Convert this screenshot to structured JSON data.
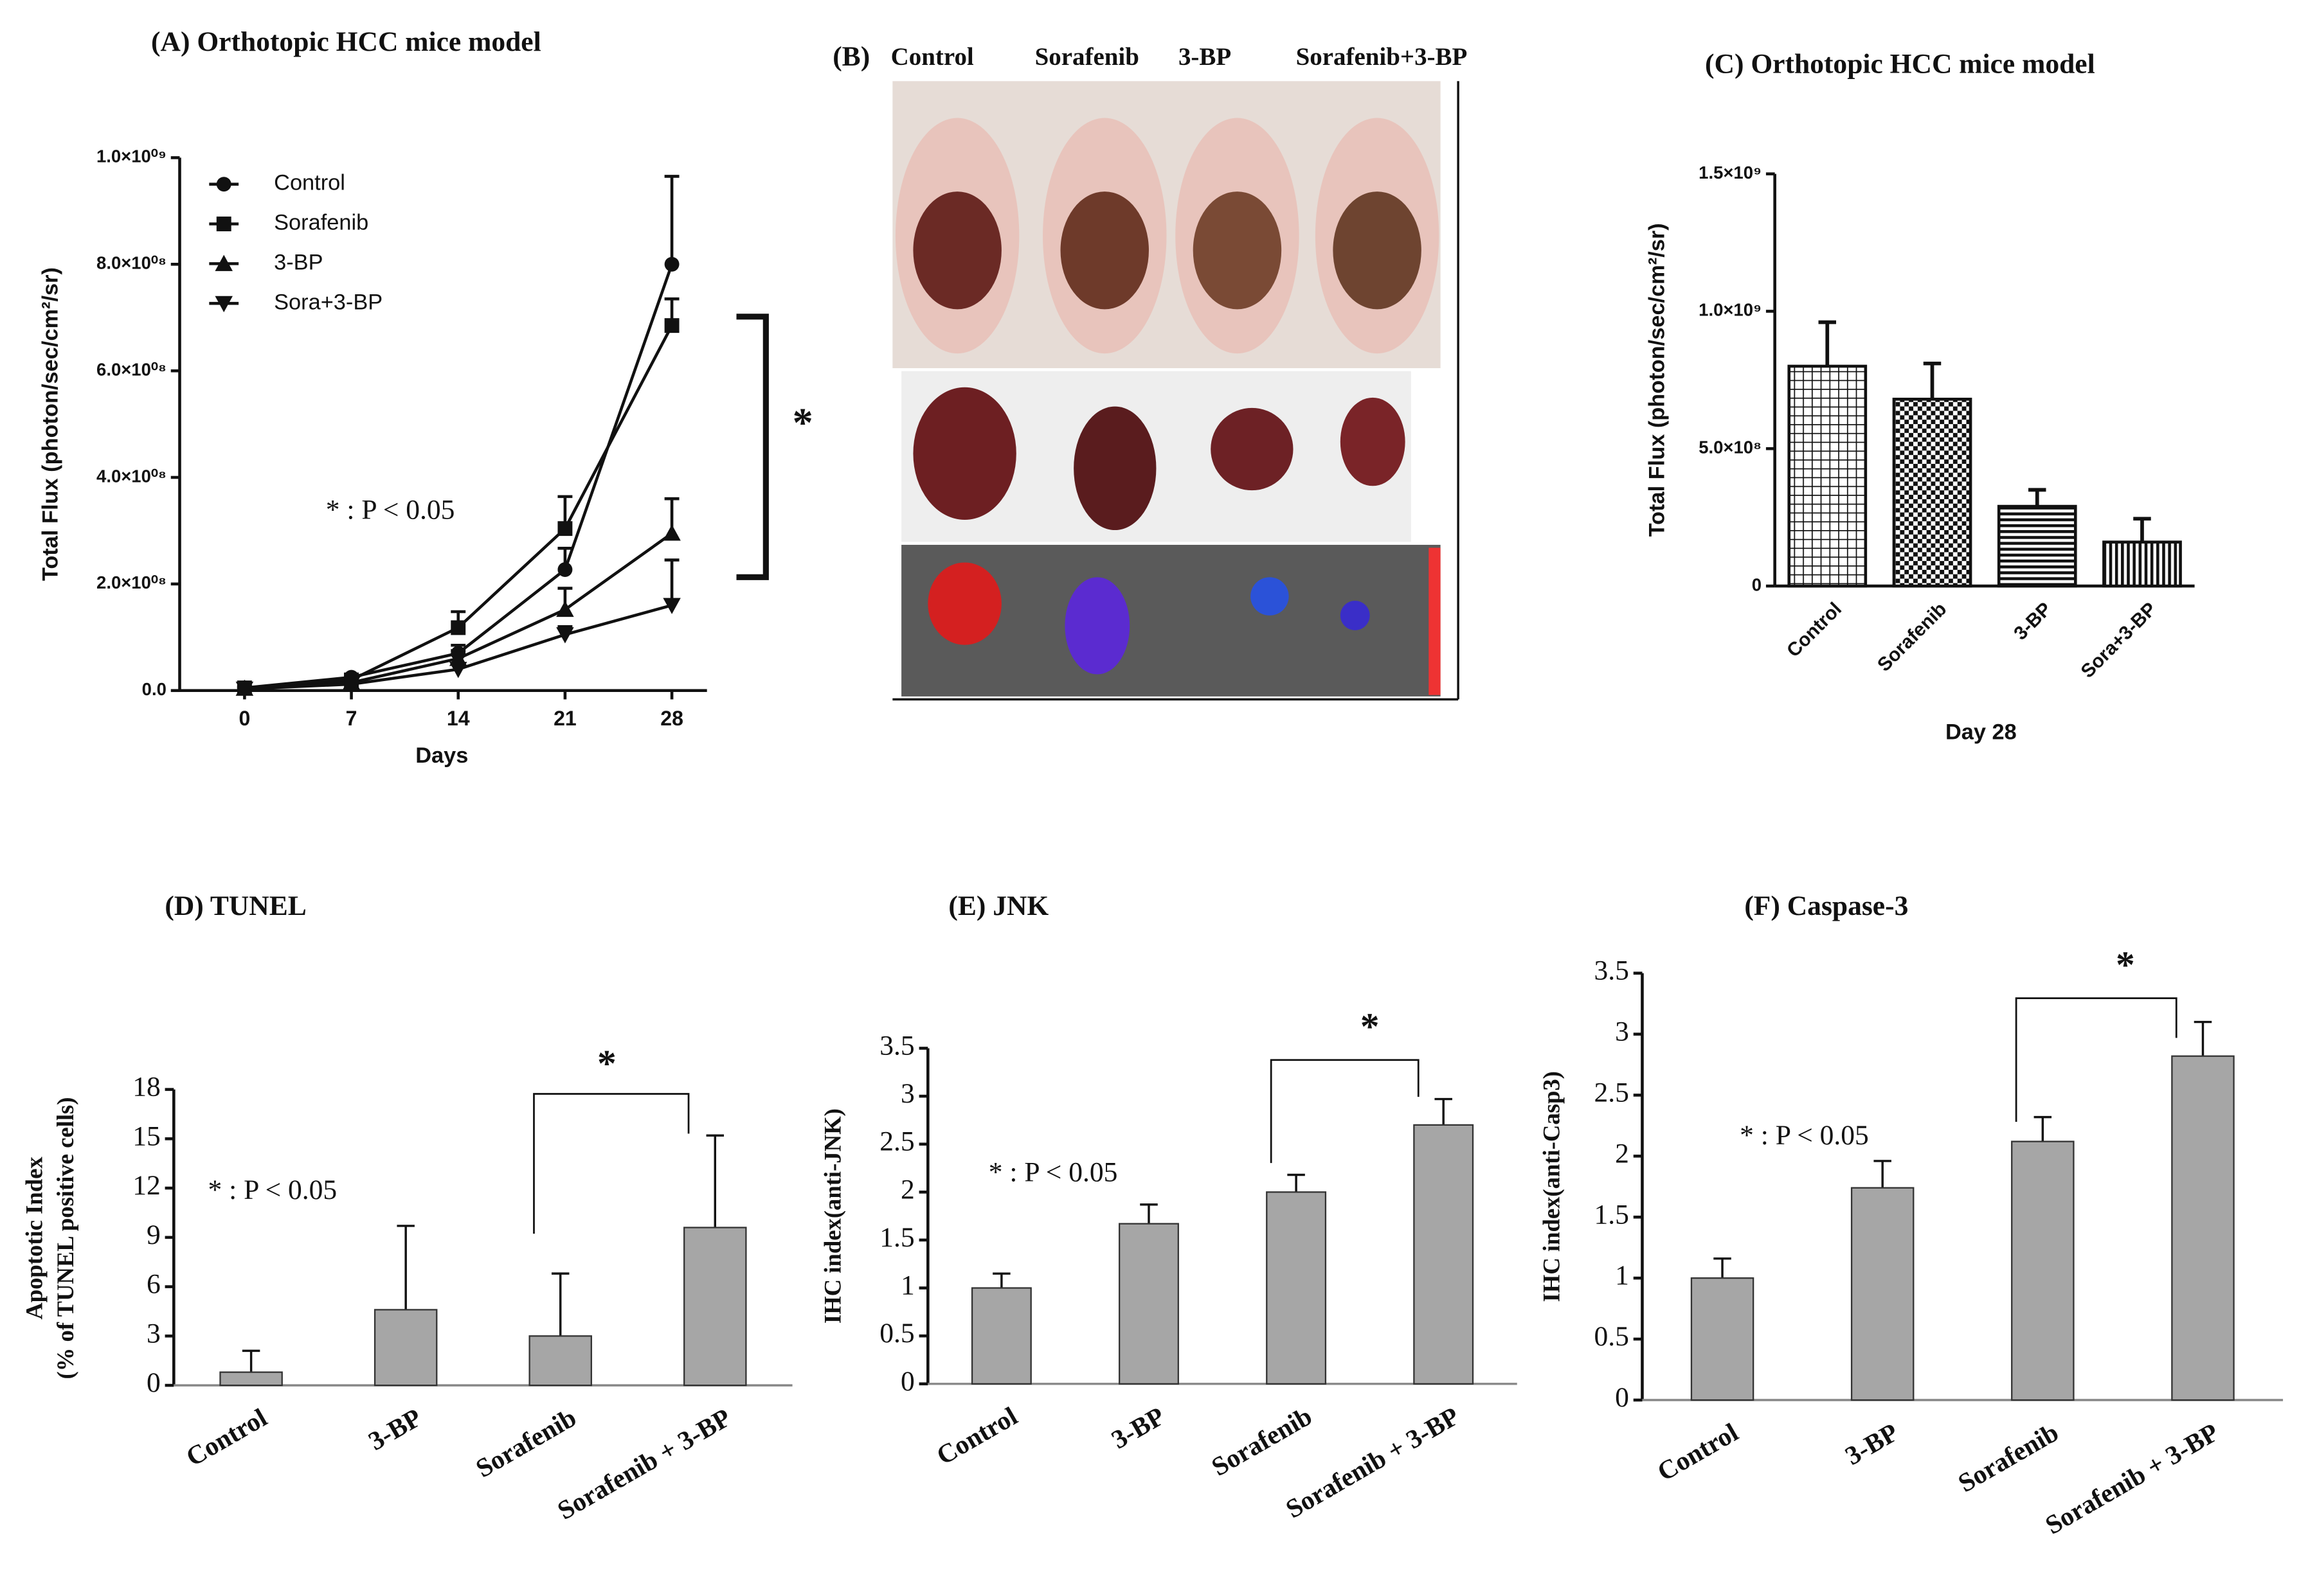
{
  "chart_data": [
    {
      "type": "line",
      "title": "(A) Orthotopic HCC mice model",
      "xlabel": "Days",
      "ylabel": "Total Flux (photon/sec/cm²/sr)",
      "x": [
        0,
        7,
        14,
        21,
        28
      ],
      "xlim": [
        -4.25,
        30.3
      ],
      "xticks": [
        0,
        7,
        14,
        21,
        28
      ],
      "ylim": [
        0,
        1000000000
      ],
      "yticks": [
        {
          "value": 0,
          "label": "0.0"
        },
        {
          "value": 200000000,
          "label": "2.0×10⁰⁸"
        },
        {
          "value": 400000000,
          "label": "4.0×10⁰⁸"
        },
        {
          "value": 600000000,
          "label": "6.0×10⁰⁸"
        },
        {
          "value": 800000000,
          "label": "8.0×10⁰⁸"
        },
        {
          "value": 1000000000,
          "label": "1.0×10⁰⁹"
        }
      ],
      "series": [
        {
          "name": "Control",
          "marker": "circle",
          "color": "#111111",
          "values": [
            5000000,
            25000000,
            70000000,
            227000000,
            800000000
          ],
          "errors": [
            2000000,
            5000000,
            15000000,
            40000000,
            165000000
          ]
        },
        {
          "name": "Sorafenib",
          "marker": "square",
          "color": "#111111",
          "values": [
            5000000,
            20000000,
            118000000,
            304000000,
            685000000
          ],
          "errors": [
            2000000,
            5000000,
            30000000,
            60000000,
            50000000
          ]
        },
        {
          "name": "3-BP",
          "marker": "triangle",
          "color": "#111111",
          "values": [
            4000000,
            15000000,
            60000000,
            152000000,
            295000000
          ],
          "errors": [
            2000000,
            4000000,
            15000000,
            40000000,
            65000000
          ]
        },
        {
          "name": "Sora+3-BP",
          "marker": "triangle-down",
          "color": "#111111",
          "values": [
            3000000,
            12000000,
            40000000,
            105000000,
            160000000
          ],
          "errors": [
            2000000,
            3000000,
            10000000,
            15000000,
            85000000
          ]
        }
      ],
      "annotations": [
        "* : P < 0.05",
        "*"
      ]
    },
    {
      "type": "image",
      "title": "(B)",
      "categories": [
        "Control",
        "Sorafenib",
        "3-BP",
        "Sorafenib+3-BP"
      ]
    },
    {
      "type": "bar",
      "title": "(C) Orthotopic HCC mice model",
      "xlabel": "Day 28",
      "ylabel": "Total Flux (photon/sec/cm²/sr)",
      "categories": [
        "Control",
        "Sorafenib",
        "3-BP",
        "Sora+3-BP"
      ],
      "values": [
        800000000,
        680000000,
        290000000,
        160000000
      ],
      "errors": [
        160000000,
        130000000,
        60000000,
        85000000
      ],
      "patterns": [
        "grid",
        "checker",
        "hlines",
        "vlines"
      ],
      "color": "#111111",
      "ylim": [
        0,
        1500000000
      ],
      "yticks": [
        0,
        {
          "value": 500000000,
          "label": "5.0×10⁸"
        },
        {
          "value": 1000000000,
          "label": "1.0×10⁹"
        },
        {
          "value": 1500000000,
          "label": "1.5×10⁹"
        }
      ]
    },
    {
      "type": "bar",
      "title": "(D) TUNEL",
      "ylabel": [
        "Apoptotic Index",
        "(% of TUNEL positive cells)"
      ],
      "categories": [
        "Control",
        "3-BP",
        "Sorafenib",
        "Sorafenib + 3-BP"
      ],
      "values": [
        0.8,
        4.6,
        3.0,
        9.6
      ],
      "errors": [
        1.3,
        5.1,
        3.8,
        5.6
      ],
      "color": "#a6a6a6",
      "ylim": [
        0,
        18
      ],
      "yticks": [
        0,
        3,
        6,
        9,
        12,
        15,
        18
      ],
      "annotations": [
        "* : P < 0.05",
        "*"
      ]
    },
    {
      "type": "bar",
      "title": "(E) JNK",
      "ylabel": "IHC index(anti-JNK)",
      "categories": [
        "Control",
        "3-BP",
        "Sorafenib",
        "Sorafenib + 3-BP"
      ],
      "values": [
        1.0,
        1.67,
        2.0,
        2.7
      ],
      "errors": [
        0.15,
        0.2,
        0.18,
        0.27
      ],
      "color": "#a6a6a6",
      "ylim": [
        0,
        3.5
      ],
      "yticks": [
        0,
        0.5,
        1,
        1.5,
        2,
        2.5,
        3,
        3.5
      ],
      "annotations": [
        "* : P < 0.05",
        "*"
      ]
    },
    {
      "type": "bar",
      "title": "(F) Caspase-3",
      "ylabel": "IHC index(anti-Casp3)",
      "categories": [
        "Control",
        "3-BP",
        "Sorafenib",
        "Sorafenib + 3-BP"
      ],
      "values": [
        1.0,
        1.74,
        2.12,
        2.82
      ],
      "errors": [
        0.16,
        0.22,
        0.2,
        0.28
      ],
      "color": "#a6a6a6",
      "ylim": [
        0,
        3.5
      ],
      "yticks": [
        0,
        0.5,
        1,
        1.5,
        2,
        2.5,
        3,
        3.5
      ],
      "annotations": [
        "* : P < 0.05",
        "*"
      ]
    }
  ]
}
